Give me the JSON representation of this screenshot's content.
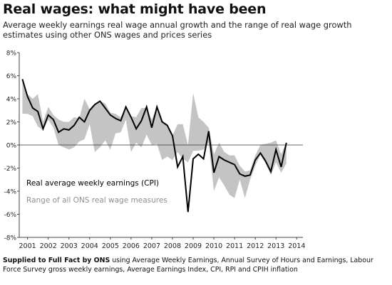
{
  "header": {
    "title": "Real wages: what might have been",
    "subtitle": "Average weekly earnings real wage annual growth and the range of real wage growth estimates using other ONS wages and prices series"
  },
  "footer": {
    "source_bold": "Supplied to Full Fact by ONS",
    "source_rest": " using Average Weekly Earnings, Annual Survey of Hours and Earnings, Labour Force Survey gross weekly earnings, Average Earnings Index, CPI, RPI and CPIH inflation"
  },
  "colors": {
    "line": "#000000",
    "band": "#c4c4c4",
    "axis": "#444444",
    "legend_line": "#000000",
    "legend_band": "#8f8f8f"
  },
  "chart_data": {
    "type": "area",
    "title": "Real wages: what might have been",
    "xlabel": "",
    "ylabel": "",
    "xlim": [
      2000.6,
      2014.3
    ],
    "ylim": [
      -8,
      8
    ],
    "y_ticks": [
      8,
      6,
      4,
      2,
      0,
      -2,
      -4,
      -6,
      -8
    ],
    "y_tick_labels": [
      "8%",
      "6%",
      "4%",
      "2%",
      "0%",
      "-2%",
      "-4%",
      "-6%",
      "-8%"
    ],
    "x_ticks": [
      2001,
      2002,
      2003,
      2004,
      2005,
      2006,
      2007,
      2008,
      2009,
      2010,
      2011,
      2012,
      2013,
      2014
    ],
    "x_tick_labels": [
      "2001",
      "2002",
      "2003",
      "2004",
      "2005",
      "2006",
      "2007",
      "2008",
      "2009",
      "2010",
      "2011",
      "2012",
      "2013",
      "2014"
    ],
    "grid": false,
    "legend": [
      {
        "label": "Real average weekly earnings (CPI)",
        "style": "line"
      },
      {
        "label": "Range of all ONS real wage measures",
        "style": "band"
      }
    ],
    "series": [
      {
        "name": "Real average weekly earnings (CPI)",
        "x": [
          2000.75,
          2001.0,
          2001.25,
          2001.5,
          2001.75,
          2002.0,
          2002.25,
          2002.5,
          2002.75,
          2003.0,
          2003.25,
          2003.5,
          2003.75,
          2004.0,
          2004.25,
          2004.5,
          2004.75,
          2005.0,
          2005.25,
          2005.5,
          2005.75,
          2006.0,
          2006.25,
          2006.5,
          2006.75,
          2007.0,
          2007.25,
          2007.5,
          2007.75,
          2008.0,
          2008.25,
          2008.5,
          2008.75,
          2009.0,
          2009.25,
          2009.5,
          2009.75,
          2010.0,
          2010.25,
          2010.5,
          2010.75,
          2011.0,
          2011.25,
          2011.5,
          2011.75,
          2012.0,
          2012.25,
          2012.5,
          2012.75,
          2013.0,
          2013.25,
          2013.5
        ],
        "y": [
          5.7,
          4.2,
          3.2,
          2.9,
          1.4,
          2.6,
          2.2,
          1.1,
          1.4,
          1.3,
          1.7,
          2.4,
          2.0,
          3.0,
          3.5,
          3.8,
          3.2,
          2.6,
          2.3,
          2.1,
          3.3,
          2.4,
          1.4,
          2.1,
          3.3,
          1.5,
          3.3,
          2.0,
          1.7,
          0.8,
          -1.9,
          -1.0,
          -5.8,
          -1.2,
          -0.8,
          -1.2,
          1.2,
          -2.4,
          -1.0,
          -1.3,
          -1.5,
          -1.7,
          -2.5,
          -2.7,
          -2.6,
          -1.3,
          -0.7,
          -1.4,
          -2.3,
          -0.4,
          -1.9,
          0.2
        ]
      },
      {
        "name": "Range of all ONS real wage measures",
        "x": [
          2000.75,
          2001.0,
          2001.25,
          2001.5,
          2001.75,
          2002.0,
          2002.25,
          2002.5,
          2002.75,
          2003.0,
          2003.25,
          2003.5,
          2003.75,
          2004.0,
          2004.25,
          2004.5,
          2004.75,
          2005.0,
          2005.25,
          2005.5,
          2005.75,
          2006.0,
          2006.25,
          2006.5,
          2006.75,
          2007.0,
          2007.25,
          2007.5,
          2007.75,
          2008.0,
          2008.25,
          2008.5,
          2008.75,
          2009.0,
          2009.25,
          2009.5,
          2009.75,
          2010.0,
          2010.25,
          2010.5,
          2010.75,
          2011.0,
          2011.25,
          2011.5,
          2011.75,
          2012.0,
          2012.25,
          2012.5,
          2012.75,
          2013.0,
          2013.25,
          2013.5
        ],
        "low": [
          2.7,
          2.7,
          2.5,
          1.6,
          1.3,
          2.2,
          1.5,
          0.0,
          -0.2,
          -0.4,
          -0.2,
          0.3,
          0.5,
          1.8,
          -0.6,
          -0.2,
          0.4,
          -0.4,
          1.0,
          1.1,
          2.2,
          -0.6,
          0.2,
          -0.2,
          0.9,
          0.0,
          0.1,
          -1.3,
          -1.0,
          -1.3,
          -0.6,
          -1.2,
          -1.5,
          -0.5,
          -0.5,
          -0.4,
          0.2,
          -4.0,
          -2.8,
          -3.5,
          -4.3,
          -4.6,
          -3.0,
          -4.6,
          -3.0,
          -1.8,
          -0.8,
          -1.6,
          -2.6,
          -1.5,
          -2.4,
          -1.6
        ],
        "high": [
          5.6,
          4.4,
          4.0,
          4.4,
          2.0,
          3.3,
          2.6,
          2.2,
          2.0,
          2.0,
          2.4,
          2.3,
          4.0,
          3.1,
          3.6,
          3.8,
          3.6,
          2.8,
          2.7,
          2.4,
          3.3,
          2.5,
          2.4,
          3.2,
          3.2,
          2.2,
          3.3,
          2.1,
          1.8,
          0.8,
          1.8,
          1.8,
          0.0,
          4.5,
          2.4,
          2.0,
          1.5,
          -0.8,
          0.2,
          -0.6,
          -0.9,
          -0.9,
          -1.8,
          -2.3,
          -2.2,
          -0.9,
          0.0,
          0.1,
          0.2,
          0.4,
          -0.8,
          0.2
        ]
      }
    ]
  }
}
